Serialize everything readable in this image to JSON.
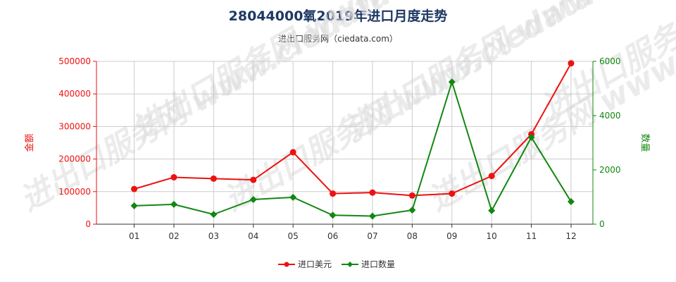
{
  "title": "28044000氧2019年进口月度走势",
  "subtitle": "进出口服务网（ciedata.com）",
  "watermark": "进出口服务网 www.ciedata.com",
  "colors": {
    "amount": "#ee1111",
    "quantity": "#118811",
    "title": "#1f3864"
  },
  "chart_data": {
    "type": "line",
    "categories": [
      "01",
      "02",
      "03",
      "04",
      "05",
      "06",
      "07",
      "08",
      "09",
      "10",
      "11",
      "12"
    ],
    "y_left": {
      "label": "金额",
      "ylim": [
        0,
        500000
      ],
      "ticks": [
        0,
        100000,
        200000,
        300000,
        400000,
        500000
      ]
    },
    "y_right": {
      "label": "数量",
      "ylim": [
        0,
        6000
      ],
      "ticks": [
        0,
        2000,
        4000,
        6000
      ]
    },
    "series": [
      {
        "name": "进口美元",
        "axis": "left",
        "color": "#ee1111",
        "marker": "circle",
        "values": [
          108000,
          144000,
          140000,
          136000,
          221000,
          94000,
          97000,
          88000,
          94000,
          148000,
          276000,
          494000
        ]
      },
      {
        "name": "进口数量",
        "axis": "right",
        "color": "#118811",
        "marker": "diamond",
        "values": [
          680,
          730,
          360,
          910,
          990,
          330,
          300,
          520,
          5240,
          500,
          3200,
          830
        ]
      }
    ],
    "grid": true,
    "legend": "bottom"
  }
}
